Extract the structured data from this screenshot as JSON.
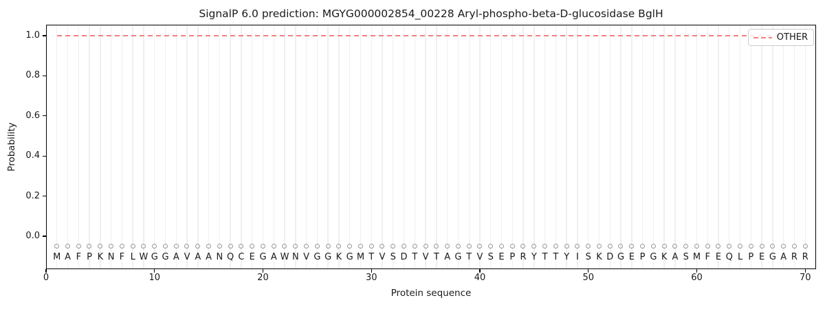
{
  "figure": {
    "title": "SignalP 6.0 prediction: MGYG000002854_00228 Aryl-phospho-beta-D-glucosidase BglH",
    "xlabel": "Protein sequence",
    "ylabel": "Probability"
  },
  "legend": {
    "entries": [
      {
        "label": "OTHER",
        "color": "#f08080",
        "linestyle": "dashed"
      }
    ],
    "position": "upper right"
  },
  "axes": {
    "ytick_labels": [
      "0.0",
      "0.2",
      "0.4",
      "0.6",
      "0.8",
      "1.0"
    ],
    "ytick_values": [
      0.0,
      0.2,
      0.4,
      0.6,
      0.8,
      1.0
    ],
    "xtick_labels": [
      "0",
      "10",
      "20",
      "30",
      "40",
      "50",
      "60",
      "70"
    ],
    "xtick_values": [
      0,
      10,
      20,
      30,
      40,
      50,
      60,
      70
    ],
    "xlim": [
      0,
      71
    ],
    "ylim": [
      -0.16,
      1.06
    ],
    "grid": "vertical gridline at every residue position"
  },
  "sequence": "MAFPKNFLWGGAVAANQCEGAWNVGGKGMTVSDTVTAGTVSEPRYTTYISKDGEPGKASMFEQLPEGARR",
  "colors": {
    "other_line": "#f08080",
    "gridline": "#efefef",
    "residue_marker": "#999999",
    "text": "#1a1a1a",
    "spine": "#000000",
    "legend_border": "#cccccc",
    "background": "#ffffff"
  },
  "chart_data": {
    "type": "line",
    "title": "SignalP 6.0 prediction: MGYG000002854_00228 Aryl-phospho-beta-D-glucosidase BglH",
    "xlabel": "Protein sequence",
    "ylabel": "Probability",
    "xlim": [
      0,
      71
    ],
    "ylim": [
      -0.16,
      1.06
    ],
    "legend_position": "upper right",
    "grid": "vertical gridlines at each residue, no horizontal gridlines",
    "x": [
      1,
      2,
      3,
      4,
      5,
      6,
      7,
      8,
      9,
      10,
      11,
      12,
      13,
      14,
      15,
      16,
      17,
      18,
      19,
      20,
      21,
      22,
      23,
      24,
      25,
      26,
      27,
      28,
      29,
      30,
      31,
      32,
      33,
      34,
      35,
      36,
      37,
      38,
      39,
      40,
      41,
      42,
      43,
      44,
      45,
      46,
      47,
      48,
      49,
      50,
      51,
      52,
      53,
      54,
      55,
      56,
      57,
      58,
      59,
      60,
      61,
      62,
      63,
      64,
      65,
      66,
      67,
      68,
      69,
      70
    ],
    "series": [
      {
        "name": "OTHER",
        "color": "#f08080",
        "linestyle": "dashed",
        "values": [
          1.0,
          1.0,
          1.0,
          1.0,
          1.0,
          1.0,
          1.0,
          1.0,
          1.0,
          1.0,
          1.0,
          1.0,
          1.0,
          1.0,
          1.0,
          1.0,
          1.0,
          1.0,
          1.0,
          1.0,
          1.0,
          1.0,
          1.0,
          1.0,
          1.0,
          1.0,
          1.0,
          1.0,
          1.0,
          1.0,
          1.0,
          1.0,
          1.0,
          1.0,
          1.0,
          1.0,
          1.0,
          1.0,
          1.0,
          1.0,
          1.0,
          1.0,
          1.0,
          1.0,
          1.0,
          1.0,
          1.0,
          1.0,
          1.0,
          1.0,
          1.0,
          1.0,
          1.0,
          1.0,
          1.0,
          1.0,
          1.0,
          1.0,
          1.0,
          1.0,
          1.0,
          1.0,
          1.0,
          1.0,
          1.0,
          1.0,
          1.0,
          1.0,
          1.0,
          1.0
        ]
      }
    ],
    "residue_labels": "MAFPKNFLWGGAVAANQCEGAWNVGGKGMTVSDTVTAGTVSEPRYTTYISKDGEPGKASMFEQLPEGARR",
    "residue_marker_y": -0.05
  }
}
